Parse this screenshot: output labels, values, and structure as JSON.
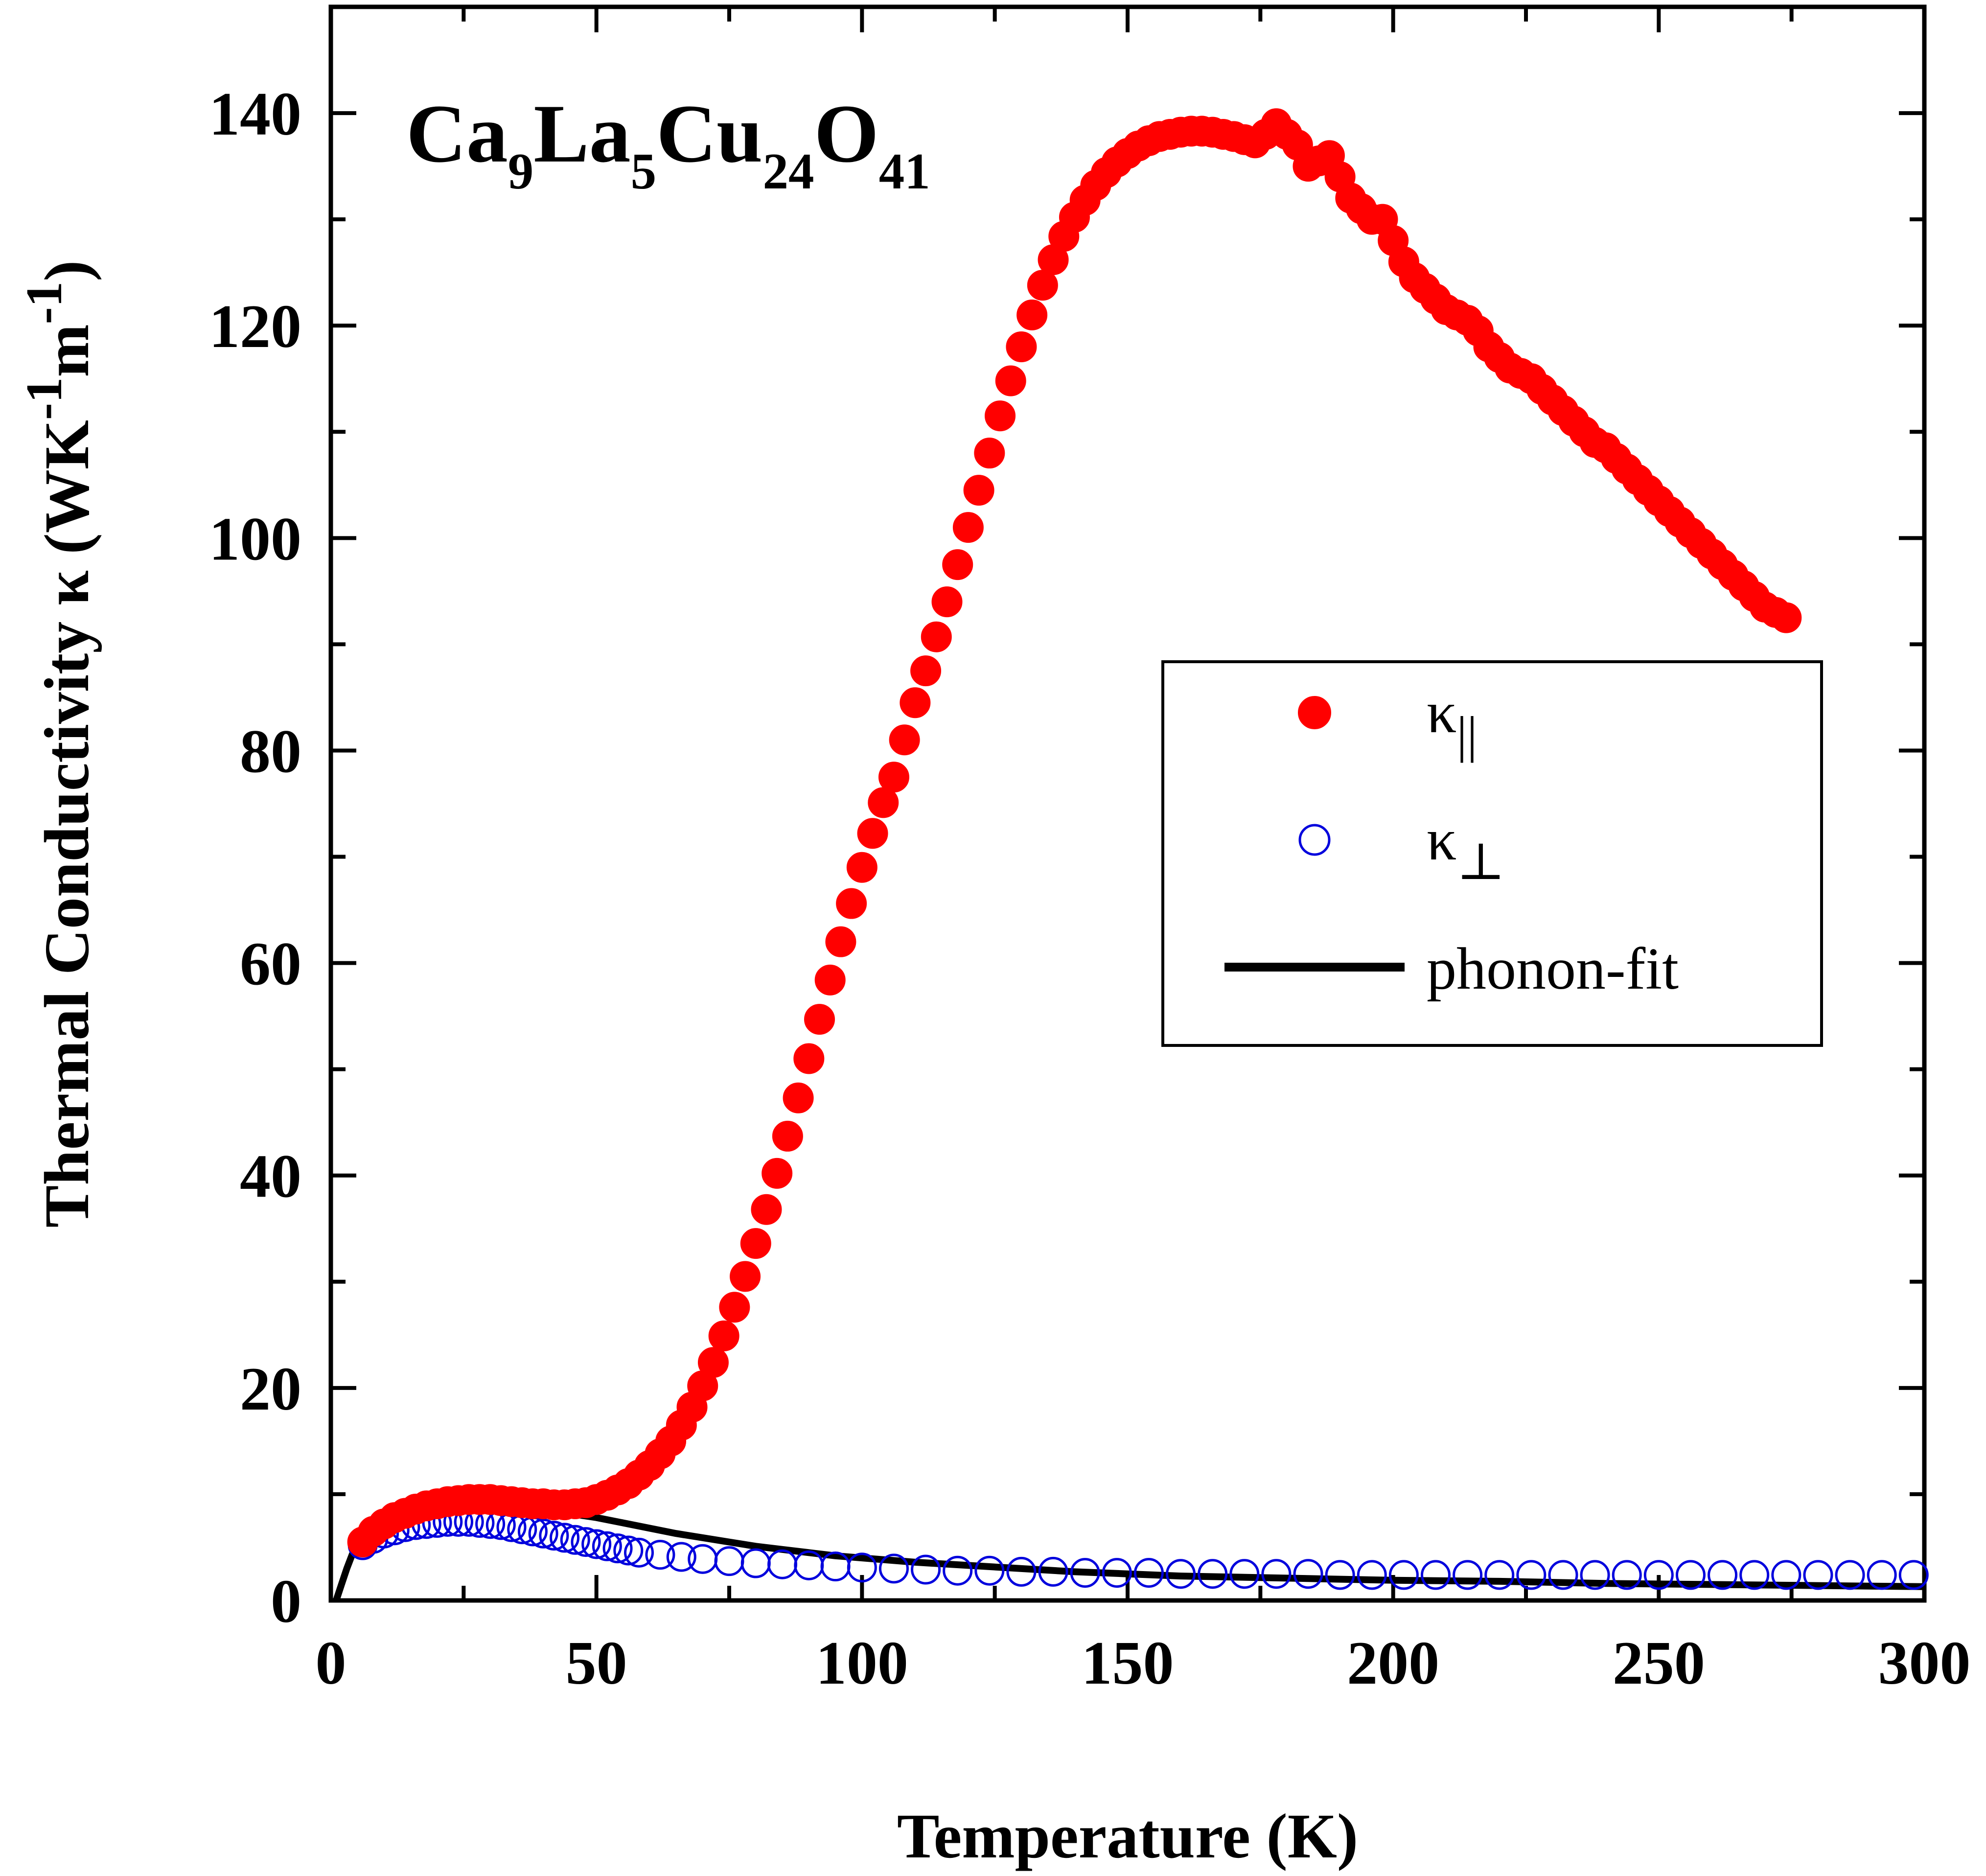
{
  "chart_data": {
    "type": "scatter",
    "x_label": "Temperature (K)",
    "y_label": "Thermal Conductivity κ (WK",
    "y_label_sup1": "-1",
    "y_label_mid": "m",
    "y_label_sup2": "-1",
    "y_label_end": ")",
    "xlim": [
      0,
      300
    ],
    "ylim": [
      0,
      150
    ],
    "x_ticks": [
      0,
      50,
      100,
      150,
      200,
      250,
      300
    ],
    "y_ticks": [
      0,
      20,
      40,
      60,
      80,
      100,
      120,
      140
    ],
    "grid": false,
    "legend_position": "right-middle",
    "annotation": {
      "parts": [
        "Ca",
        "9",
        "La",
        "5",
        "Cu",
        "24",
        "O",
        "41"
      ]
    },
    "series": [
      {
        "name": "κ",
        "name_sub": "||",
        "marker": "filled-circle",
        "color": "#ff0000",
        "points": [
          [
            6,
            5.5
          ],
          [
            8,
            6.5
          ],
          [
            10,
            7.2
          ],
          [
            12,
            7.8
          ],
          [
            14,
            8.2
          ],
          [
            16,
            8.6
          ],
          [
            18,
            8.9
          ],
          [
            20,
            9.1
          ],
          [
            22,
            9.3
          ],
          [
            24,
            9.4
          ],
          [
            26,
            9.5
          ],
          [
            28,
            9.5
          ],
          [
            30,
            9.5
          ],
          [
            32,
            9.4
          ],
          [
            34,
            9.3
          ],
          [
            36,
            9.2
          ],
          [
            38,
            9.1
          ],
          [
            40,
            9.1
          ],
          [
            42,
            9.0
          ],
          [
            44,
            9.0
          ],
          [
            46,
            9.1
          ],
          [
            48,
            9.2
          ],
          [
            50,
            9.5
          ],
          [
            52,
            9.9
          ],
          [
            54,
            10.4
          ],
          [
            56,
            11.0
          ],
          [
            58,
            11.8
          ],
          [
            60,
            12.7
          ],
          [
            62,
            13.8
          ],
          [
            64,
            15.0
          ],
          [
            66,
            16.5
          ],
          [
            68,
            18.2
          ],
          [
            70,
            20.2
          ],
          [
            72,
            22.4
          ],
          [
            74,
            24.9
          ],
          [
            76,
            27.6
          ],
          [
            78,
            30.5
          ],
          [
            80,
            33.6
          ],
          [
            82,
            36.8
          ],
          [
            84,
            40.2
          ],
          [
            86,
            43.7
          ],
          [
            88,
            47.3
          ],
          [
            90,
            51.0
          ],
          [
            92,
            54.7
          ],
          [
            94,
            58.4
          ],
          [
            96,
            62.0
          ],
          [
            98,
            65.6
          ],
          [
            100,
            69.0
          ],
          [
            102,
            72.2
          ],
          [
            104,
            75.1
          ],
          [
            106,
            77.5
          ],
          [
            108,
            81.0
          ],
          [
            110,
            84.5
          ],
          [
            112,
            87.5
          ],
          [
            114,
            90.7
          ],
          [
            116,
            94.0
          ],
          [
            118,
            97.5
          ],
          [
            120,
            101.0
          ],
          [
            122,
            104.5
          ],
          [
            124,
            108.0
          ],
          [
            126,
            111.5
          ],
          [
            128,
            114.8
          ],
          [
            130,
            118.0
          ],
          [
            132,
            121.0
          ],
          [
            134,
            123.8
          ],
          [
            136,
            126.2
          ],
          [
            138,
            128.4
          ],
          [
            140,
            130.2
          ],
          [
            142,
            131.8
          ],
          [
            144,
            133.2
          ],
          [
            146,
            134.4
          ],
          [
            148,
            135.4
          ],
          [
            150,
            136.2
          ],
          [
            152,
            136.9
          ],
          [
            154,
            137.4
          ],
          [
            156,
            137.8
          ],
          [
            158,
            138.0
          ],
          [
            160,
            138.2
          ],
          [
            162,
            138.3
          ],
          [
            164,
            138.3
          ],
          [
            166,
            138.2
          ],
          [
            168,
            138.0
          ],
          [
            170,
            137.8
          ],
          [
            172,
            137.5
          ],
          [
            174,
            137.2
          ],
          [
            176,
            138.0
          ],
          [
            178,
            139.0
          ],
          [
            180,
            138.0
          ],
          [
            182,
            137.0
          ],
          [
            184,
            135.0
          ],
          [
            186,
            135.5
          ],
          [
            188,
            136.0
          ],
          [
            190,
            134.0
          ],
          [
            192,
            132.0
          ],
          [
            194,
            131.0
          ],
          [
            196,
            130.0
          ],
          [
            198,
            130.0
          ],
          [
            200,
            128.0
          ],
          [
            202,
            126.0
          ],
          [
            204,
            124.5
          ],
          [
            206,
            123.5
          ],
          [
            208,
            122.5
          ],
          [
            210,
            121.5
          ],
          [
            212,
            121.0
          ],
          [
            214,
            120.5
          ],
          [
            216,
            119.5
          ],
          [
            218,
            118.0
          ],
          [
            220,
            117.0
          ],
          [
            222,
            116.0
          ],
          [
            224,
            115.5
          ],
          [
            226,
            115.0
          ],
          [
            228,
            114.0
          ],
          [
            230,
            113.0
          ],
          [
            232,
            112.0
          ],
          [
            234,
            111.0
          ],
          [
            236,
            110.0
          ],
          [
            238,
            109.0
          ],
          [
            240,
            108.5
          ],
          [
            242,
            107.5
          ],
          [
            244,
            106.5
          ],
          [
            246,
            105.5
          ],
          [
            248,
            104.5
          ],
          [
            250,
            103.5
          ],
          [
            252,
            102.5
          ],
          [
            254,
            101.5
          ],
          [
            256,
            100.5
          ],
          [
            258,
            99.5
          ],
          [
            260,
            98.5
          ],
          [
            262,
            97.5
          ],
          [
            264,
            96.5
          ],
          [
            266,
            95.5
          ],
          [
            268,
            94.5
          ],
          [
            270,
            93.5
          ],
          [
            272,
            93.0
          ],
          [
            274,
            92.5
          ]
        ]
      },
      {
        "name": "κ",
        "name_sub": "⊥",
        "marker": "open-circle",
        "color": "#0000dd",
        "points": [
          [
            6,
            5.2
          ],
          [
            8,
            5.8
          ],
          [
            10,
            6.3
          ],
          [
            12,
            6.6
          ],
          [
            14,
            6.9
          ],
          [
            16,
            7.1
          ],
          [
            18,
            7.2
          ],
          [
            20,
            7.3
          ],
          [
            22,
            7.4
          ],
          [
            24,
            7.4
          ],
          [
            26,
            7.4
          ],
          [
            28,
            7.3
          ],
          [
            30,
            7.2
          ],
          [
            32,
            7.1
          ],
          [
            34,
            6.9
          ],
          [
            36,
            6.7
          ],
          [
            38,
            6.5
          ],
          [
            40,
            6.3
          ],
          [
            42,
            6.1
          ],
          [
            44,
            5.9
          ],
          [
            46,
            5.7
          ],
          [
            48,
            5.5
          ],
          [
            50,
            5.3
          ],
          [
            52,
            5.1
          ],
          [
            54,
            4.9
          ],
          [
            56,
            4.7
          ],
          [
            58,
            4.5
          ],
          [
            62,
            4.3
          ],
          [
            66,
            4.1
          ],
          [
            70,
            3.9
          ],
          [
            75,
            3.7
          ],
          [
            80,
            3.5
          ],
          [
            85,
            3.4
          ],
          [
            90,
            3.3
          ],
          [
            95,
            3.2
          ],
          [
            100,
            3.1
          ],
          [
            106,
            3.0
          ],
          [
            112,
            2.9
          ],
          [
            118,
            2.8
          ],
          [
            124,
            2.8
          ],
          [
            130,
            2.7
          ],
          [
            136,
            2.7
          ],
          [
            142,
            2.6
          ],
          [
            148,
            2.6
          ],
          [
            154,
            2.6
          ],
          [
            160,
            2.5
          ],
          [
            166,
            2.5
          ],
          [
            172,
            2.5
          ],
          [
            178,
            2.5
          ],
          [
            184,
            2.5
          ],
          [
            190,
            2.4
          ],
          [
            196,
            2.4
          ],
          [
            202,
            2.4
          ],
          [
            208,
            2.4
          ],
          [
            214,
            2.4
          ],
          [
            220,
            2.4
          ],
          [
            226,
            2.4
          ],
          [
            232,
            2.4
          ],
          [
            238,
            2.4
          ],
          [
            244,
            2.4
          ],
          [
            250,
            2.4
          ],
          [
            256,
            2.4
          ],
          [
            262,
            2.4
          ],
          [
            268,
            2.4
          ],
          [
            274,
            2.4
          ],
          [
            280,
            2.4
          ],
          [
            286,
            2.4
          ],
          [
            292,
            2.4
          ],
          [
            298,
            2.4
          ]
        ]
      },
      {
        "name": "phonon-fit",
        "marker": "line",
        "color": "#000000",
        "points": [
          [
            1,
            0
          ],
          [
            2,
            1.5
          ],
          [
            3,
            3.0
          ],
          [
            4,
            4.3
          ],
          [
            5,
            5.3
          ],
          [
            6,
            6.0
          ],
          [
            8,
            6.9
          ],
          [
            10,
            7.6
          ],
          [
            12,
            8.0
          ],
          [
            14,
            8.4
          ],
          [
            16,
            8.6
          ],
          [
            18,
            8.8
          ],
          [
            20,
            8.9
          ],
          [
            22,
            9.0
          ],
          [
            24,
            9.0
          ],
          [
            26,
            9.0
          ],
          [
            28,
            9.0
          ],
          [
            30,
            8.9
          ],
          [
            34,
            8.8
          ],
          [
            38,
            8.6
          ],
          [
            42,
            8.4
          ],
          [
            46,
            8.1
          ],
          [
            50,
            7.8
          ],
          [
            55,
            7.3
          ],
          [
            60,
            6.8
          ],
          [
            65,
            6.3
          ],
          [
            70,
            5.9
          ],
          [
            75,
            5.5
          ],
          [
            80,
            5.1
          ],
          [
            85,
            4.8
          ],
          [
            90,
            4.5
          ],
          [
            95,
            4.2
          ],
          [
            100,
            4.0
          ],
          [
            110,
            3.6
          ],
          [
            120,
            3.3
          ],
          [
            130,
            3.0
          ],
          [
            140,
            2.7
          ],
          [
            150,
            2.5
          ],
          [
            160,
            2.3
          ],
          [
            170,
            2.2
          ],
          [
            180,
            2.1
          ],
          [
            190,
            2.0
          ],
          [
            200,
            1.9
          ],
          [
            220,
            1.8
          ],
          [
            240,
            1.6
          ],
          [
            260,
            1.5
          ],
          [
            280,
            1.4
          ],
          [
            300,
            1.3
          ]
        ]
      }
    ]
  }
}
